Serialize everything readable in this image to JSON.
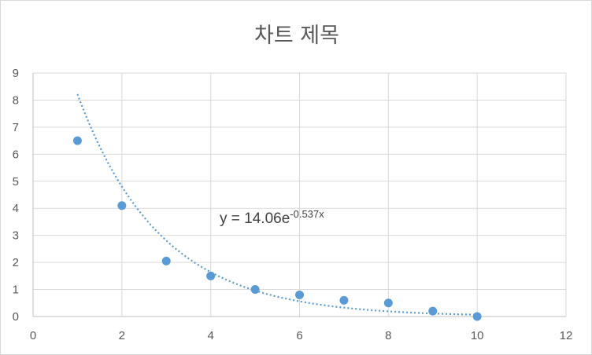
{
  "chart_data": {
    "type": "scatter",
    "title": "차트 제목",
    "xlabel": "",
    "ylabel": "",
    "xlim": [
      0,
      12
    ],
    "ylim": [
      0,
      9
    ],
    "x_ticks": [
      0,
      2,
      4,
      6,
      8,
      10,
      12
    ],
    "y_ticks": [
      0,
      1,
      2,
      3,
      4,
      5,
      6,
      7,
      8,
      9
    ],
    "grid": true,
    "legend": "none",
    "series": [
      {
        "color": "#5b9bd5",
        "x": [
          1,
          2,
          3,
          4,
          5,
          6,
          7,
          8,
          9,
          10
        ],
        "y": [
          6.5,
          4.1,
          2.05,
          1.5,
          1.0,
          0.8,
          0.6,
          0.5,
          0.2,
          0.0
        ]
      }
    ],
    "trendline": {
      "type": "exponential",
      "coefficient": 14.06,
      "exponent": -0.537,
      "x_range": [
        1,
        10
      ],
      "color": "#5b9bd5",
      "label_prefix": "y = 14.06e",
      "label_superscript": "-0.537x"
    }
  }
}
